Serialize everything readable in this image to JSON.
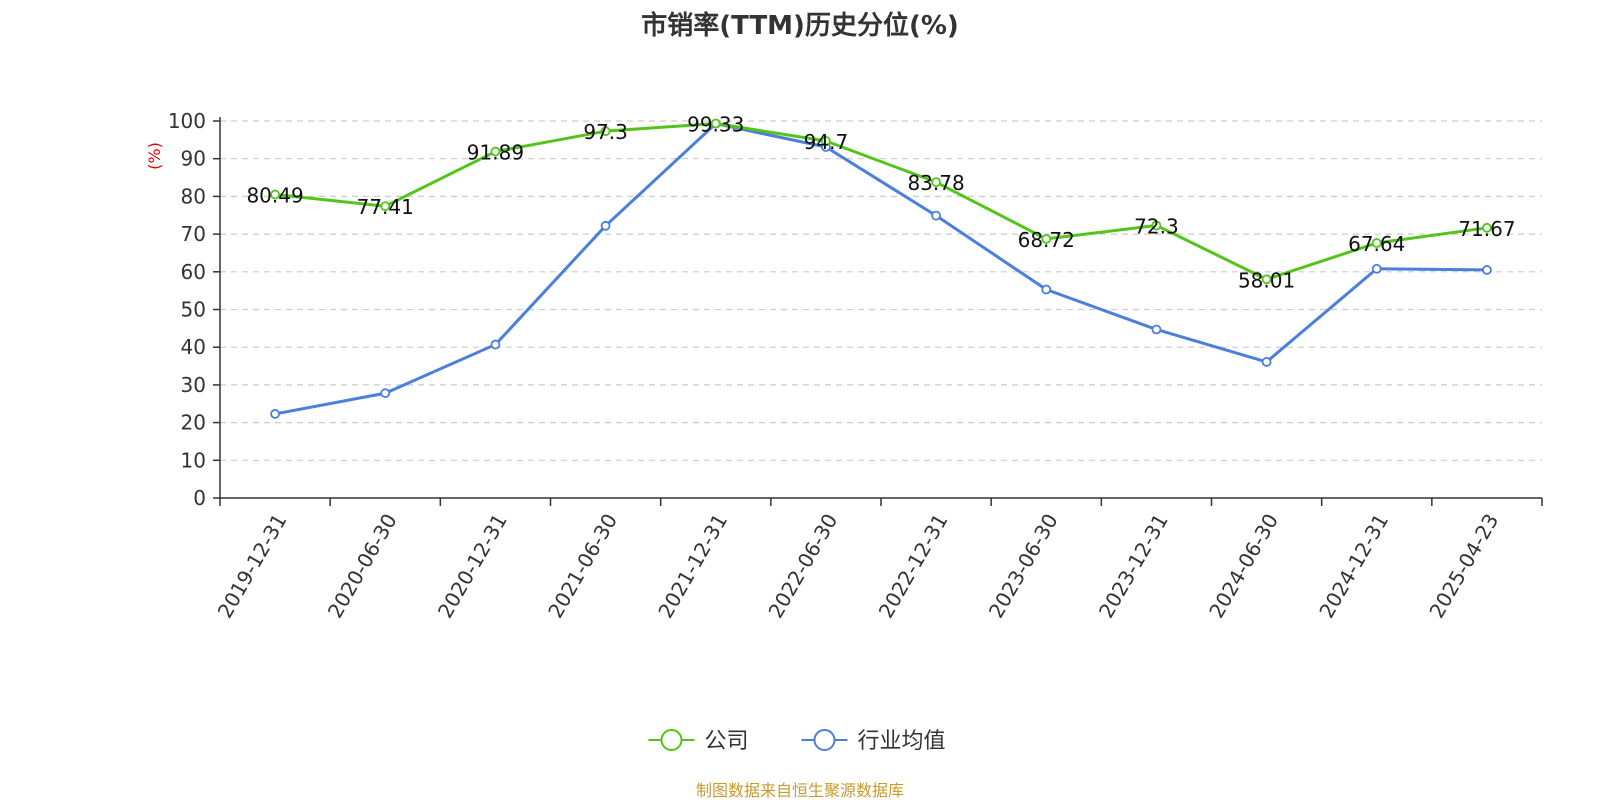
{
  "chart_data": {
    "type": "line",
    "title": "市销率(TTM)历史分位(%)",
    "ylabel": "(%)",
    "xlabel": "",
    "ylim": [
      0,
      100
    ],
    "yticks": [
      0,
      10,
      20,
      30,
      40,
      50,
      60,
      70,
      80,
      90,
      100
    ],
    "grid": true,
    "legend_position": "bottom-center",
    "categories": [
      "2019-12-31",
      "2020-06-30",
      "2020-12-31",
      "2021-06-30",
      "2021-12-31",
      "2022-06-30",
      "2022-12-31",
      "2023-06-30",
      "2023-12-31",
      "2024-06-30",
      "2024-12-31",
      "2025-04-23"
    ],
    "series": [
      {
        "name": "公司",
        "color": "#52c41a",
        "values": [
          80.49,
          77.41,
          91.89,
          97.3,
          99.33,
          94.7,
          83.78,
          68.72,
          72.3,
          58.01,
          67.64,
          71.67
        ],
        "show_labels": true
      },
      {
        "name": "行业均值",
        "color": "#4a7fdc",
        "values": [
          22.3,
          27.8,
          40.7,
          72.2,
          99.3,
          93.1,
          74.9,
          55.3,
          44.7,
          36.1,
          60.8,
          60.5
        ],
        "show_labels": false
      }
    ],
    "source": "制图数据来自恒生聚源数据库"
  }
}
